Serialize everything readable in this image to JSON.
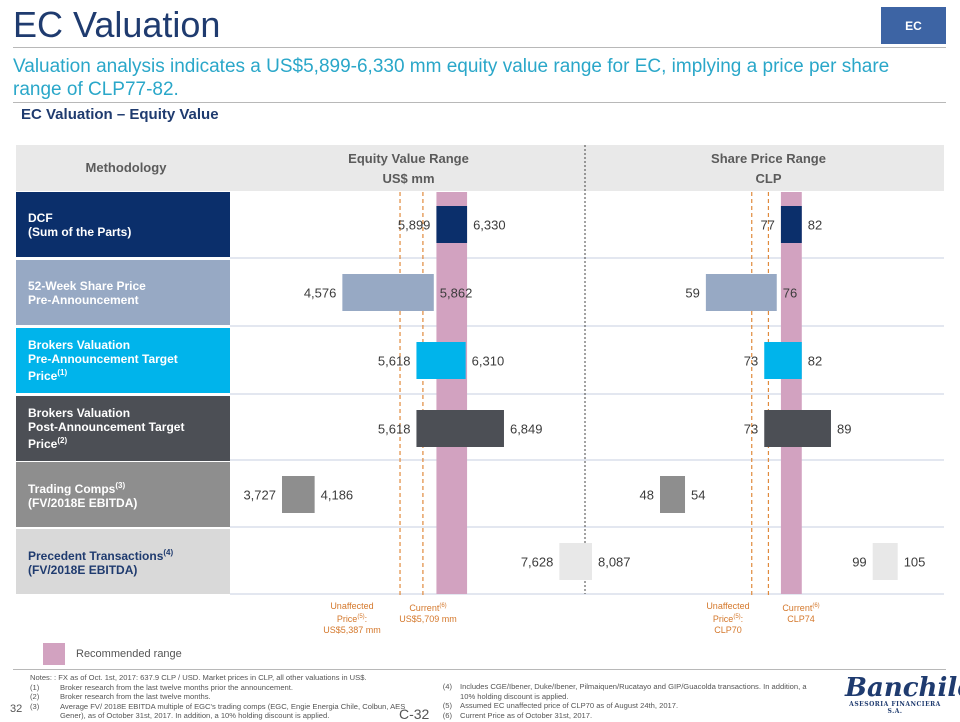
{
  "header": {
    "title": "EC Valuation",
    "tag": "EC"
  },
  "subtitle": "Valuation analysis indicates a US$5,899-6,330 mm equity value range for EC, implying a price per share range of CLP77-82.",
  "section_title": "EC Valuation – Equity Value",
  "table_header": {
    "methodology": "Methodology",
    "equity_title": "Equity Value Range",
    "equity_unit": "US$ mm",
    "price_title": "Share Price Range",
    "price_unit": "CLP"
  },
  "rows": [
    {
      "line1": "DCF",
      "line2": "(Sum of the Parts)",
      "line3": "",
      "sup": ""
    },
    {
      "line1": "52-Week Share Price",
      "line2": "Pre-Announcement",
      "line3": "",
      "sup": ""
    },
    {
      "line1": "Brokers Valuation",
      "line2": "Pre-Announcement Target",
      "line3": "Price",
      "sup": "(1)"
    },
    {
      "line1": "Brokers Valuation",
      "line2": "Post-Announcement Target",
      "line3": "Price",
      "sup": "(2)"
    },
    {
      "line1": "Trading Comps",
      "line2": "(FV/2018E EBITDA)",
      "line3": "",
      "sup": "(3)"
    },
    {
      "line1": "Precedent Transactions",
      "line2": "(FV/2018E EBITDA)",
      "line3": "",
      "sup": "(4)"
    }
  ],
  "markers": {
    "equity_unaffected": {
      "l1": "Unaffected",
      "l2": "Price",
      "sup": "(5)",
      "l2b": ":",
      "l3": "US$5,387 mm"
    },
    "equity_current": {
      "l1": "Current",
      "sup": "(6)",
      "l2": "US$5,709 mm"
    },
    "price_unaffected": {
      "l1": "Unaffected",
      "l2": "Price",
      "sup": "(5)",
      "l2b": ":",
      "l3": "CLP70"
    },
    "price_current": {
      "l1": "Current",
      "sup": "(6)",
      "l2": "CLP74"
    }
  },
  "chart_data": [
    {
      "type": "bar",
      "title": "Equity Value Range",
      "ylabel": "US$ mm",
      "categories": [
        "DCF (Sum of the Parts)",
        "52-Week Share Price Pre-Announcement",
        "Brokers Valuation Pre-Announcement Target Price",
        "Brokers Valuation Post-Announcement Target Price",
        "Trading Comps (FV/2018E EBITDA)",
        "Precedent Transactions (FV/2018E EBITDA)"
      ],
      "series": [
        {
          "name": "low",
          "values": [
            5899,
            4576,
            5618,
            5618,
            3727,
            7628
          ]
        },
        {
          "name": "high",
          "values": [
            6330,
            5862,
            6310,
            6849,
            4186,
            8087
          ]
        }
      ],
      "low_labels": [
        "5,899",
        "4,576",
        "5,618",
        "5,618",
        "3,727",
        "7,628"
      ],
      "high_labels": [
        "6,330",
        "5,862",
        "6,310",
        "6,849",
        "4,186",
        "8,087"
      ],
      "recommended_range": [
        5899,
        6330
      ],
      "reference_lines": [
        {
          "name": "Unaffected Price",
          "value": 5387
        },
        {
          "name": "Current",
          "value": 5709
        }
      ],
      "colors": [
        "#0b2f6b",
        "#97a9c4",
        "#00b4eb",
        "#4c4f55",
        "#8e8e8e",
        "#e8e8e8"
      ],
      "recommended_color": "#d2a2c0"
    },
    {
      "type": "bar",
      "title": "Share Price Range",
      "ylabel": "CLP",
      "categories": [
        "DCF (Sum of the Parts)",
        "52-Week Share Price Pre-Announcement",
        "Brokers Valuation Pre-Announcement Target Price",
        "Brokers Valuation Post-Announcement Target Price",
        "Trading Comps (FV/2018E EBITDA)",
        "Precedent Transactions (FV/2018E EBITDA)"
      ],
      "series": [
        {
          "name": "low",
          "values": [
            77,
            59,
            73,
            73,
            48,
            99
          ]
        },
        {
          "name": "high",
          "values": [
            82,
            76,
            82,
            89,
            54,
            105
          ]
        }
      ],
      "low_labels": [
        "77",
        "59",
        "73",
        "73",
        "48",
        "99"
      ],
      "high_labels": [
        "82",
        "76",
        "82",
        "89",
        "54",
        "105"
      ],
      "recommended_range": [
        77,
        82
      ],
      "reference_lines": [
        {
          "name": "Unaffected Price",
          "value": 70
        },
        {
          "name": "Current",
          "value": 74
        }
      ],
      "colors": [
        "#0b2f6b",
        "#97a9c4",
        "#00b4eb",
        "#4c4f55",
        "#8e8e8e",
        "#e8e8e8"
      ],
      "recommended_color": "#d2a2c0"
    }
  ],
  "row_colors": [
    "#0b2f6b",
    "#97a9c4",
    "#00b4eb",
    "#4c4f55",
    "#8e8e8e",
    "#d9d9d9"
  ],
  "row_text_colors": [
    "#ffffff",
    "#ffffff",
    "#ffffff",
    "#ffffff",
    "#ffffff",
    "#1f3b6f"
  ],
  "legend": "Recommended range",
  "notes": {
    "header": "Notes: : FX as of Oct. 1st, 2017: 637.9 CLP / USD. Market prices in CLP, all other valuations in US$.",
    "left": [
      {
        "n": "(1)",
        "t": "Broker research from the last twelve months prior the announcement."
      },
      {
        "n": "(2)",
        "t": "Broker research from the last twelve months."
      },
      {
        "n": "(3)",
        "t": "Average FV/ 2018E EBITDA multiple of EGC's trading comps (EGC, Engie Energia Chile, Colbun, AES Gener), as of October 31st, 2017. In addition, a 10% holding discount is applied."
      }
    ],
    "right": [
      {
        "n": "(4)",
        "t": "Includes CGE/Ibener, Duke/Ibener, Pilmaiquen/Rucatayo and GIP/Guacolda transactions. In addition, a 10% holding discount is applied."
      },
      {
        "n": "(5)",
        "t": "Assumed EC unaffected price of CLP70 as of August 24th, 2017."
      },
      {
        "n": "(6)",
        "t": "Current Price as of October 31st, 2017."
      }
    ]
  },
  "footer": {
    "page": "32",
    "code": "C-32",
    "logo_name": "Banchile",
    "logo_sub": "ASESORIA FINANCIERA S.A."
  }
}
